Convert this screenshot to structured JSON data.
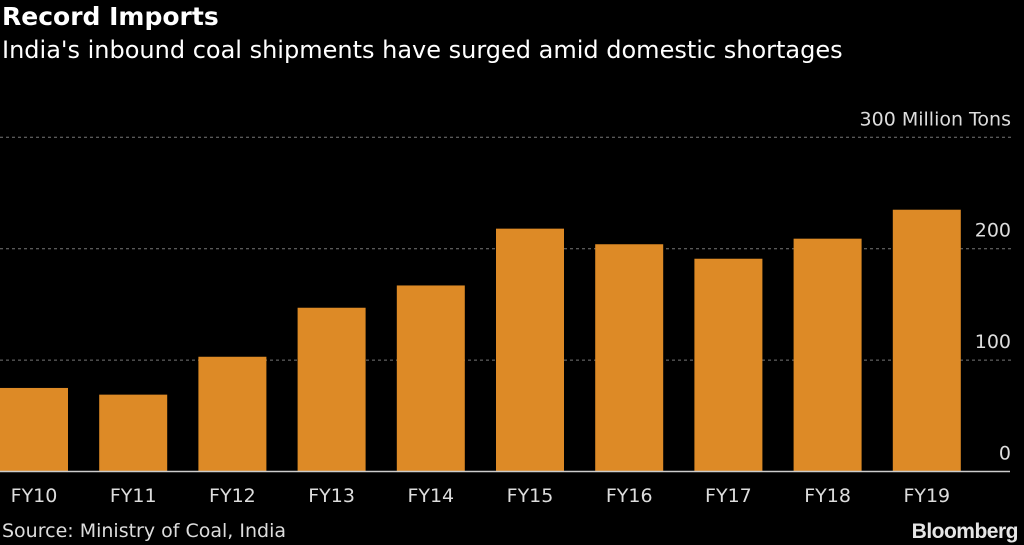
{
  "chart_data": {
    "type": "bar",
    "title": "Record Imports",
    "subtitle": "India's inbound coal shipments have surged amid domestic shortages",
    "categories": [
      "FY10",
      "FY11",
      "FY12",
      "FY13",
      "FY14",
      "FY15",
      "FY16",
      "FY17",
      "FY18",
      "FY19"
    ],
    "values": [
      75,
      69,
      103,
      147,
      167,
      218,
      204,
      191,
      209,
      235
    ],
    "ylabel": "Million Tons",
    "ylim": [
      0,
      300
    ],
    "yticks": [
      0,
      100,
      200,
      300
    ],
    "ytick_labels": [
      "0",
      "100",
      "200",
      "300 Million Tons"
    ],
    "grid": true,
    "bar_color": "#dd8a26",
    "source": "Source: Ministry of Coal, India",
    "brand": "Bloomberg"
  }
}
